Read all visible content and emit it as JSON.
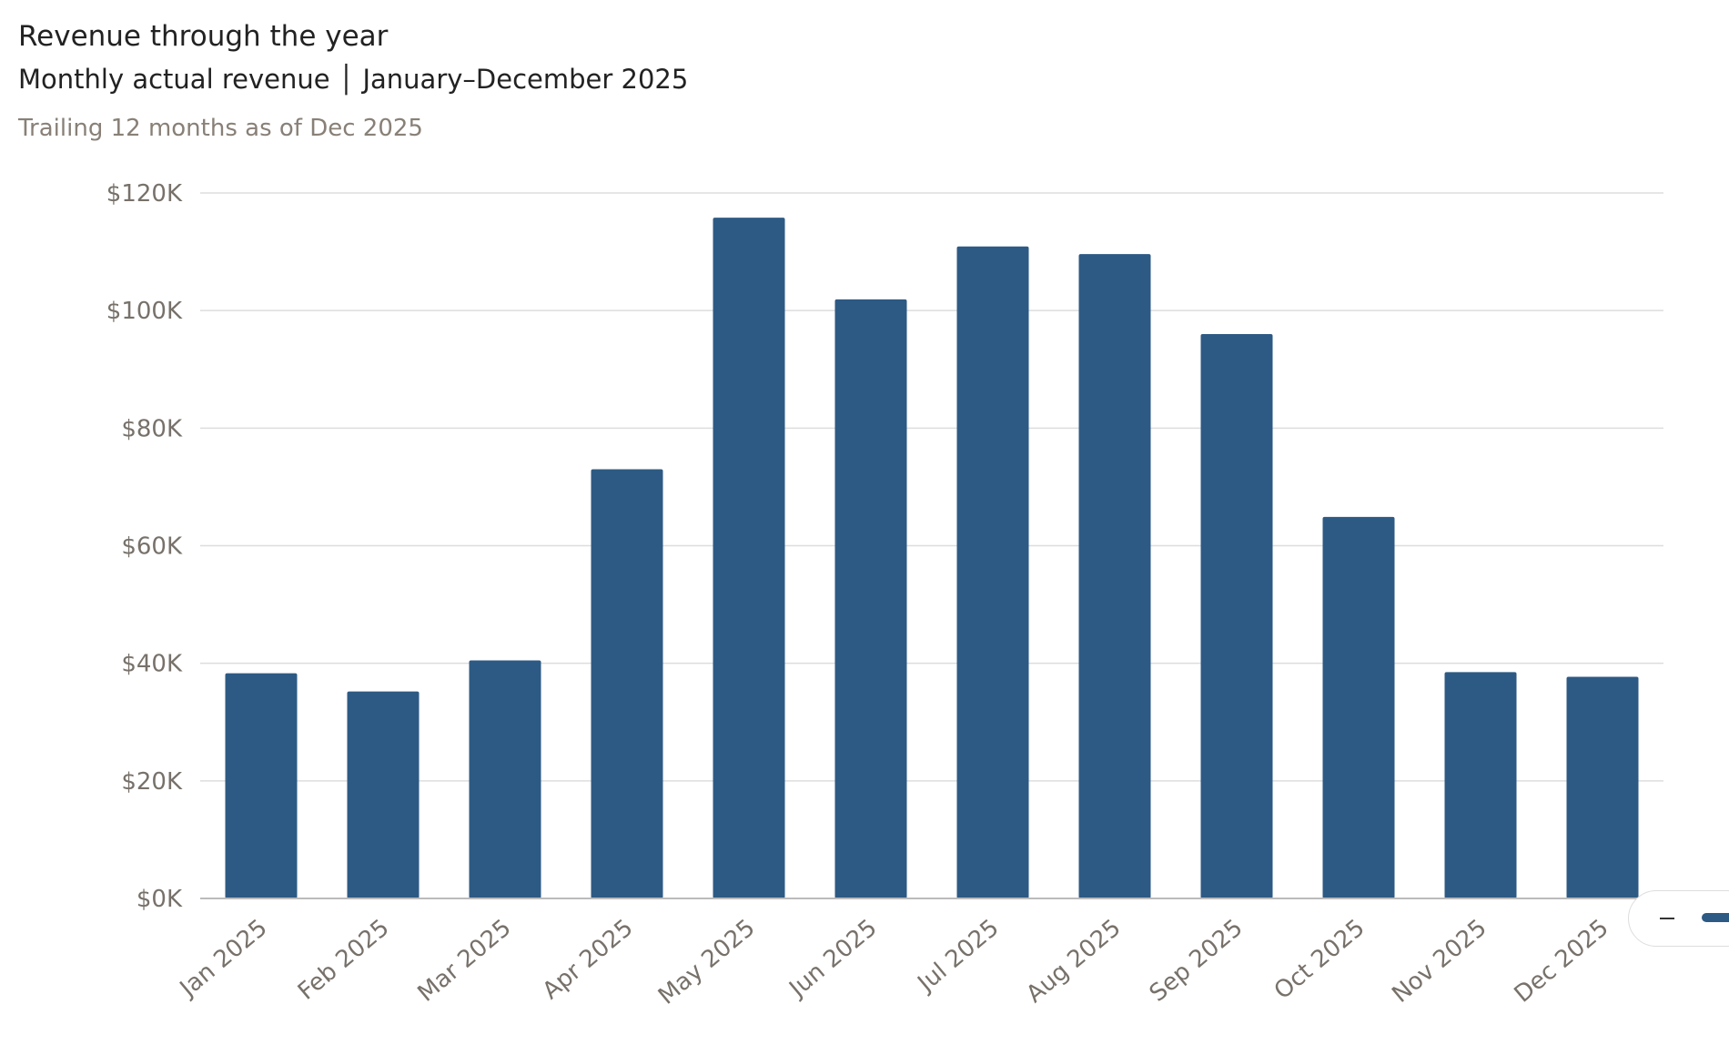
{
  "header": {
    "title": "Revenue through the year",
    "subtitle": "Monthly actual revenue │ January–December 2025",
    "note": "Trailing 12 months as of Dec 2025"
  },
  "colors": {
    "bar": "#2d5a84",
    "grid": "#dddddd",
    "axis_text": "#77716a",
    "axis_line": "#bbbbbb"
  },
  "chart_data": {
    "type": "bar",
    "title": "Revenue through the year",
    "subtitle": "Monthly actual revenue │ January–December 2025",
    "categories": [
      "Jan 2025",
      "Feb 2025",
      "Mar 2025",
      "Apr 2025",
      "May 2025",
      "Jun 2025",
      "Jul 2025",
      "Aug 2025",
      "Sep 2025",
      "Oct 2025",
      "Nov 2025",
      "Dec 2025"
    ],
    "values": [
      38300,
      35200,
      40500,
      73000,
      115800,
      101900,
      110900,
      109600,
      96000,
      64900,
      38500,
      37700
    ],
    "ylim": [
      0,
      120000
    ],
    "yticks": [
      0,
      20000,
      40000,
      60000,
      80000,
      100000,
      120000
    ],
    "ytick_labels": [
      "$0K",
      "$20K",
      "$40K",
      "$60K",
      "$80K",
      "$100K",
      "$120K"
    ],
    "xlabel": "",
    "ylabel": "",
    "grid": true,
    "legend": "bottom-right"
  }
}
